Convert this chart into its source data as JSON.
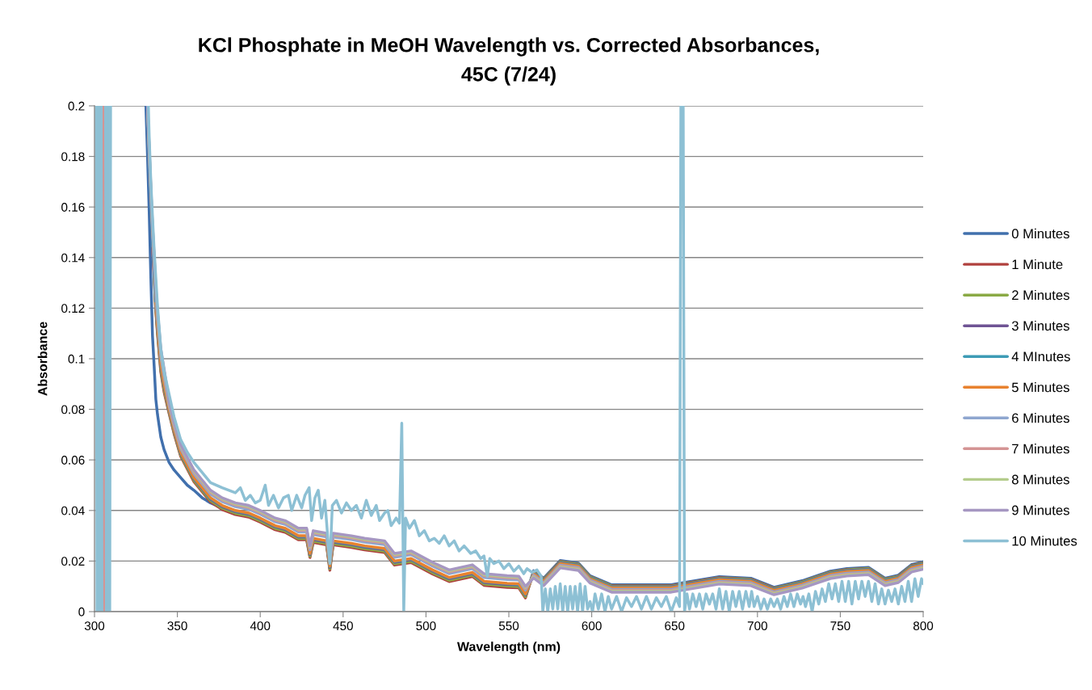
{
  "chart_data": {
    "type": "line",
    "title": "KCl Phosphate in MeOH Wavelength vs. Corrected Absorbances,\n45C (7/24)",
    "xlabel": "Wavelength (nm)",
    "ylabel": "Absorbance",
    "xlim": [
      300,
      800
    ],
    "xticks": [
      300,
      350,
      400,
      450,
      500,
      550,
      600,
      650,
      700,
      750,
      800
    ],
    "ylim": [
      0,
      0.2
    ],
    "yticks": [
      0,
      0.02,
      0.04,
      0.06,
      0.08,
      0.1,
      0.12,
      0.14,
      0.16,
      0.18,
      0.2
    ],
    "grid": "y",
    "legend": "right",
    "x": [
      331,
      332,
      333,
      334,
      335,
      336,
      337,
      338,
      340,
      342,
      345,
      348,
      352,
      356,
      360,
      365,
      370,
      377,
      385,
      393,
      400,
      409,
      415,
      423,
      428,
      430,
      432,
      440,
      442,
      444,
      455,
      463,
      475,
      481,
      491,
      504,
      514,
      528,
      535,
      549,
      556,
      560,
      565,
      571,
      581,
      592,
      599,
      612,
      630,
      648,
      677,
      696,
      710,
      727,
      744,
      754,
      767,
      777,
      785,
      793,
      800
    ],
    "series": [
      {
        "name": "0 Minutes",
        "color": "#4170ad",
        "values": [
          0.2,
          0.18,
          0.158,
          0.132,
          0.109,
          0.097,
          0.084,
          0.078,
          0.069,
          0.064,
          0.059,
          0.056,
          0.053,
          0.05,
          0.048,
          0.045,
          0.043,
          0.041,
          0.0392,
          0.0382,
          0.0362,
          0.0332,
          0.0322,
          0.0292,
          0.0292,
          0.0222,
          0.0282,
          0.0272,
          0.0172,
          0.0272,
          0.0262,
          0.0252,
          0.0242,
          0.0192,
          0.0202,
          0.0157,
          0.0127,
          0.0147,
          0.0112,
          0.0104,
          0.0102,
          0.0062,
          0.0162,
          0.0132,
          0.0202,
          0.0192,
          0.0142,
          0.0106,
          0.0106,
          0.0106,
          0.0138,
          0.0132,
          0.0096,
          0.0122,
          0.016,
          0.017,
          0.0175,
          0.0132,
          0.0144,
          0.0186,
          0.0197
        ]
      },
      {
        "name": "1 Minute",
        "color": "#b0403d",
        "values": [
          null,
          null,
          null,
          null,
          0.1438,
          0.1318,
          0.1188,
          0.1098,
          0.0948,
          0.0868,
          0.0784,
          0.0704,
          0.0614,
          0.0564,
          0.0514,
          0.0474,
          0.0434,
          0.0404,
          0.0384,
          0.0374,
          0.0354,
          0.0324,
          0.0314,
          0.0284,
          0.0284,
          0.0214,
          0.0274,
          0.0264,
          0.0164,
          0.0264,
          0.0254,
          0.0244,
          0.0234,
          0.0184,
          0.0194,
          0.0149,
          0.0119,
          0.0139,
          0.0104,
          0.0096,
          0.0094,
          0.0054,
          0.0158,
          0.0128,
          0.0198,
          0.0188,
          0.0138,
          0.0102,
          0.0102,
          0.0102,
          0.0134,
          0.0128,
          0.0092,
          0.0118,
          0.0156,
          0.0166,
          0.0171,
          0.0128,
          0.014,
          0.0182,
          0.0193
        ]
      },
      {
        "name": "2 Minutes",
        "color": "#8aaa45",
        "values": [
          null,
          null,
          null,
          null,
          null,
          0.1328,
          0.1198,
          0.1108,
          0.0958,
          0.0878,
          0.0789,
          0.0709,
          0.0619,
          0.0569,
          0.0519,
          0.0479,
          0.0439,
          0.0409,
          0.0389,
          0.0379,
          0.0359,
          0.0329,
          0.0319,
          0.0289,
          0.0289,
          0.0219,
          0.0279,
          0.0269,
          0.0169,
          0.0269,
          0.0259,
          0.0249,
          0.0239,
          0.0189,
          0.0199,
          0.0154,
          0.0124,
          0.0144,
          0.0109,
          0.0101,
          0.0099,
          0.0059,
          0.0157,
          0.0127,
          0.0197,
          0.0187,
          0.0137,
          0.0101,
          0.0101,
          0.0101,
          0.0133,
          0.0127,
          0.0091,
          0.0117,
          0.0155,
          0.0165,
          0.017,
          0.0127,
          0.0139,
          0.0181,
          0.0192
        ]
      },
      {
        "name": "3 Minutes",
        "color": "#6f5494",
        "values": [
          null,
          0.197,
          0.177,
          0.161,
          0.146,
          0.134,
          0.121,
          0.112,
          0.097,
          0.089,
          0.0795,
          0.0715,
          0.0625,
          0.0575,
          0.0525,
          0.0485,
          0.0445,
          0.0415,
          0.0395,
          0.0385,
          0.0365,
          0.0335,
          0.0325,
          0.0295,
          0.0295,
          0.0225,
          0.0285,
          0.0275,
          0.0175,
          0.0275,
          0.0265,
          0.0255,
          0.0245,
          0.0195,
          0.0205,
          0.016,
          0.013,
          0.015,
          0.0115,
          0.0107,
          0.0105,
          0.0065,
          0.0154,
          0.0124,
          0.0194,
          0.0184,
          0.0134,
          0.0098,
          0.0098,
          0.0098,
          0.013,
          0.0124,
          0.0088,
          0.0114,
          0.0152,
          0.0162,
          0.0167,
          0.0124,
          0.0136,
          0.0178,
          0.0189
        ]
      },
      {
        "name": "4 MInutes",
        "color": "#3d9bb5",
        "values": [
          null,
          0.1976,
          0.1776,
          0.1616,
          0.1466,
          0.1346,
          0.1216,
          0.1126,
          0.0976,
          0.0896,
          0.0798,
          0.0718,
          0.0628,
          0.0578,
          0.0528,
          0.0488,
          0.0448,
          0.0418,
          0.0398,
          0.0388,
          0.0368,
          0.0338,
          0.0328,
          0.0298,
          0.0298,
          0.0228,
          0.0288,
          0.0278,
          0.0178,
          0.0278,
          0.0268,
          0.0258,
          0.0248,
          0.0198,
          0.0208,
          0.0163,
          0.0133,
          0.0153,
          0.0118,
          0.011,
          0.0108,
          0.0068,
          0.0152,
          0.0122,
          0.0192,
          0.0182,
          0.0132,
          0.0096,
          0.0096,
          0.0096,
          0.0128,
          0.0122,
          0.0086,
          0.0112,
          0.015,
          0.016,
          0.0165,
          0.0122,
          0.0134,
          0.0176,
          0.0187
        ]
      },
      {
        "name": "5 Minutes",
        "color": "#e8822f",
        "values": [
          null,
          null,
          null,
          null,
          null,
          null,
          0.122,
          0.113,
          0.098,
          0.09,
          0.08,
          0.072,
          0.063,
          0.058,
          0.053,
          0.049,
          0.045,
          0.042,
          0.04,
          0.039,
          0.037,
          0.034,
          0.033,
          0.03,
          0.03,
          0.023,
          0.029,
          0.028,
          0.018,
          0.028,
          0.027,
          0.026,
          0.025,
          0.02,
          0.021,
          0.0165,
          0.0135,
          0.0155,
          0.012,
          0.0112,
          0.011,
          0.007,
          0.015,
          0.012,
          0.019,
          0.018,
          0.013,
          0.0094,
          0.0094,
          0.0094,
          0.0126,
          0.012,
          0.0084,
          0.011,
          0.0148,
          0.0158,
          0.0163,
          0.012,
          0.0132,
          0.0174,
          0.0185
        ]
      },
      {
        "name": "6 Minutes",
        "color": "#8ea6cf",
        "values": [
          null,
          0.2,
          0.181,
          0.165,
          0.15,
          0.138,
          0.125,
          0.116,
          0.101,
          0.093,
          0.0815,
          0.0735,
          0.0645,
          0.0595,
          0.0545,
          0.0505,
          0.0465,
          0.0435,
          0.0415,
          0.0405,
          0.0385,
          0.0355,
          0.0345,
          0.0315,
          0.0315,
          0.0245,
          0.0305,
          0.0295,
          0.0195,
          0.0295,
          0.0285,
          0.0275,
          0.0265,
          0.0215,
          0.0225,
          0.018,
          0.015,
          0.017,
          0.0135,
          0.0127,
          0.0125,
          0.0085,
          0.0144,
          0.0114,
          0.0184,
          0.0174,
          0.0124,
          0.0088,
          0.0088,
          0.0088,
          0.012,
          0.0114,
          0.0078,
          0.0104,
          0.0142,
          0.0152,
          0.0157,
          0.0114,
          0.0126,
          0.0168,
          0.0179
        ]
      },
      {
        "name": "7 Minutes",
        "color": "#d49494",
        "x": [
          305.5,
          305.6,
          331,
          332,
          333,
          334,
          335,
          336,
          337,
          338,
          340,
          342,
          345,
          348,
          352,
          356,
          360,
          365,
          370,
          377,
          385,
          393,
          400,
          409,
          415,
          423,
          428,
          430,
          432,
          440,
          442,
          444,
          455,
          463,
          475,
          481,
          491,
          504,
          514,
          528,
          535,
          549,
          556,
          560,
          565,
          571,
          581,
          592,
          599,
          612,
          630,
          648,
          677,
          696,
          710,
          727,
          744,
          754,
          767,
          777,
          785,
          793,
          800
        ],
        "values": [
          0,
          0.2,
          null,
          0.2,
          0.1824,
          0.1664,
          0.1514,
          0.1394,
          0.1264,
          0.1174,
          0.1024,
          0.0944,
          0.0822,
          0.0742,
          0.0652,
          0.0602,
          0.0552,
          0.0512,
          0.0472,
          0.0442,
          0.0422,
          0.0412,
          0.0392,
          0.0362,
          0.0352,
          0.0322,
          0.0322,
          0.0252,
          0.0312,
          0.0302,
          0.0202,
          0.0302,
          0.0292,
          0.0282,
          0.0272,
          0.0222,
          0.0232,
          0.0187,
          0.0157,
          0.0177,
          0.0142,
          0.0134,
          0.0132,
          0.0092,
          0.014,
          0.011,
          0.018,
          0.017,
          0.012,
          0.0084,
          0.0084,
          0.0084,
          0.0116,
          0.011,
          0.0074,
          0.01,
          0.0138,
          0.0148,
          0.0153,
          0.011,
          0.0122,
          0.0164,
          0.0175
        ]
      },
      {
        "name": "8 Minutes",
        "color": "#b4cc8c",
        "values": [
          null,
          0.2,
          0.1832,
          0.1672,
          0.1522,
          0.1402,
          0.1272,
          0.1182,
          0.1032,
          0.0952,
          0.0826,
          0.0746,
          0.0656,
          0.0606,
          0.0556,
          0.0516,
          0.0476,
          0.0446,
          0.0426,
          0.0416,
          0.0396,
          0.0366,
          0.0356,
          0.0326,
          0.0326,
          0.0256,
          0.0316,
          0.0306,
          0.0206,
          0.0306,
          0.0296,
          0.0286,
          0.0276,
          0.0226,
          0.0236,
          0.0191,
          0.0161,
          0.0181,
          0.0146,
          0.0138,
          0.0136,
          0.0096,
          0.0137,
          0.0107,
          0.0177,
          0.0167,
          0.0117,
          0.0081,
          0.0081,
          0.0081,
          0.0113,
          0.0107,
          0.0071,
          0.0097,
          0.0135,
          0.0145,
          0.015,
          0.0107,
          0.0119,
          0.0161,
          0.0172
        ]
      },
      {
        "name": "9 Minutes",
        "color": "#a697c2",
        "values": [
          null,
          0.2,
          0.184,
          0.168,
          0.153,
          0.141,
          0.128,
          0.119,
          0.104,
          0.096,
          0.083,
          0.075,
          0.066,
          0.061,
          0.056,
          0.052,
          0.048,
          0.045,
          0.043,
          0.042,
          0.04,
          0.037,
          0.036,
          0.033,
          0.033,
          0.026,
          0.032,
          0.031,
          0.021,
          0.031,
          0.03,
          0.029,
          0.028,
          0.023,
          0.024,
          0.0195,
          0.0165,
          0.0185,
          0.015,
          0.0142,
          0.014,
          0.01,
          0.0133,
          0.0103,
          0.0173,
          0.0163,
          0.0113,
          0.0077,
          0.0077,
          0.0077,
          0.0109,
          0.0103,
          0.0067,
          0.0093,
          0.0131,
          0.0141,
          0.0146,
          0.0103,
          0.0115,
          0.0157,
          0.0168
        ]
      },
      {
        "name": "10 Minutes",
        "color": "#8dc0d4",
        "x": [
          301,
          301.5,
          302,
          302.5,
          303,
          303.5,
          304,
          304.5,
          305.5,
          306.7,
          307.2,
          307.7,
          308.2,
          308.7,
          309.2,
          309.7,
          320,
          332.5,
          333,
          334,
          335,
          336,
          337,
          338,
          340,
          342,
          345,
          348,
          352,
          356,
          360,
          365,
          370,
          377,
          385,
          388,
          391,
          394,
          397,
          400,
          403,
          405,
          408,
          411,
          414,
          417,
          419,
          422,
          425,
          427,
          429.5,
          431,
          433,
          435,
          437,
          439,
          442,
          443.5,
          446,
          449,
          452,
          455,
          458,
          461,
          464,
          467,
          470,
          472,
          475,
          477,
          479,
          482,
          484,
          485.4,
          486.6,
          487.7,
          490,
          493,
          496,
          499,
          502,
          505,
          508,
          511,
          514,
          517,
          520,
          523,
          527,
          530,
          533,
          535,
          537,
          538.5,
          541,
          544,
          547,
          550,
          553,
          556,
          559,
          561,
          564,
          567,
          569.5,
          570.5,
          572,
          573.5,
          575,
          576.5,
          578,
          579.5,
          581,
          582.5,
          584,
          585.5,
          587,
          588.5,
          590,
          591.5,
          593,
          594.5,
          596,
          597.5,
          599,
          600.5,
          602,
          604,
          606,
          608,
          610,
          612,
          615,
          618,
          621,
          624,
          627,
          630,
          633,
          636,
          639,
          642,
          645,
          648,
          651,
          653,
          653.8,
          655.2,
          656,
          657.5,
          659,
          661,
          663,
          665,
          667,
          669,
          671,
          673,
          675,
          677,
          679,
          681,
          683,
          685,
          687,
          689,
          691,
          693,
          695,
          696.5,
          698,
          700,
          702,
          704,
          706,
          708,
          710,
          712,
          714,
          716,
          718,
          720,
          722,
          724,
          726,
          727.5,
          729,
          731,
          733,
          735,
          737,
          739,
          741,
          743,
          745,
          747,
          749,
          751,
          753,
          755,
          757,
          759,
          761,
          763,
          765,
          767,
          769,
          771,
          773,
          775,
          777,
          779,
          781,
          783,
          785,
          787,
          789,
          791,
          793,
          795,
          797,
          799,
          800
        ],
        "values": [
          0.2,
          0,
          0.2,
          0,
          0.2,
          0,
          0.2,
          0,
          null,
          0.2,
          0,
          0.2,
          0,
          0.2,
          0,
          0.2,
          null,
          0.2,
          0.188,
          0.17,
          0.156,
          0.143,
          0.132,
          0.121,
          0.104,
          0.095,
          0.086,
          0.077,
          0.068,
          0.063,
          0.059,
          0.055,
          0.051,
          0.049,
          0.047,
          0.049,
          0.044,
          0.046,
          0.043,
          0.044,
          0.05,
          0.042,
          0.046,
          0.041,
          0.045,
          0.046,
          0.04,
          0.046,
          0.041,
          0.046,
          0.049,
          0.036,
          0.045,
          0.048,
          0.037,
          0.044,
          0.019,
          0.042,
          0.044,
          0.039,
          0.043,
          0.04,
          0.042,
          0.037,
          0.044,
          0.038,
          0.042,
          0.036,
          0.039,
          0.04,
          0.034,
          0.037,
          0.035,
          0.0745,
          0,
          0.037,
          0.033,
          0.036,
          0.03,
          0.032,
          0.028,
          0.029,
          0.027,
          0.03,
          0.026,
          0.028,
          0.024,
          0.026,
          0.023,
          0.024,
          0.021,
          0.022,
          0.014,
          0.021,
          0.019,
          0.02,
          0.017,
          0.019,
          0.016,
          0.018,
          0.015,
          0.017,
          0.0155,
          0.0165,
          0.014,
          0,
          0.009,
          0,
          0.009,
          0.001,
          0.01,
          0.001,
          0.011,
          0,
          0.01,
          0,
          0.01,
          0.001,
          0.01,
          0,
          0.011,
          0,
          0.01,
          0.001,
          0.004,
          0,
          0.007,
          0.001,
          0.007,
          0,
          0.006,
          0.001,
          0.006,
          0,
          0.0055,
          0.002,
          0.006,
          0.001,
          0.006,
          0.001,
          0.0055,
          0.002,
          0.006,
          0,
          0.0055,
          0.002,
          0.2,
          0.2,
          0,
          0.007,
          0.001,
          0.007,
          0.002,
          0.007,
          0.001,
          0.007,
          0.003,
          0.007,
          0.001,
          0.009,
          0.001,
          0.008,
          0,
          0.008,
          0.002,
          0.008,
          0.001,
          0.008,
          0.002,
          0.008,
          0.002,
          0.006,
          0.001,
          0.005,
          0.001,
          0.005,
          0.002,
          0.005,
          0.001,
          0.006,
          0.002,
          0.007,
          0.002,
          0.007,
          0.003,
          0.006,
          0.002,
          0.007,
          0,
          0.008,
          0.003,
          0.009,
          0.004,
          0.011,
          0.005,
          0.011,
          0.004,
          0.012,
          0.004,
          0.012,
          0.003,
          0.012,
          0.005,
          0.012,
          0.006,
          0.012,
          0.004,
          0.011,
          0.003,
          0.009,
          0.003,
          0.0085,
          0.004,
          0.009,
          0.003,
          0.01,
          0.004,
          0.012,
          0.004,
          0.013,
          0.006,
          0.013,
          0.011
        ]
      }
    ]
  }
}
